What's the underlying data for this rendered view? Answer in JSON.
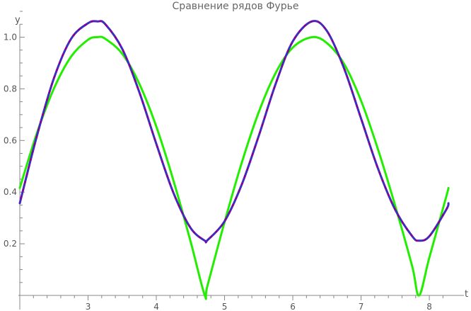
{
  "chart_data": {
    "type": "line",
    "title": "Сравнение рядов Фурье",
    "xlabel": "t",
    "ylabel": "y",
    "xlim": [
      2.0,
      8.3
    ],
    "ylim": [
      0.0,
      1.1
    ],
    "x_ticks": [
      3,
      4,
      5,
      6,
      7,
      8
    ],
    "y_ticks": [
      0.2,
      0.4,
      0.6,
      0.8,
      1.0
    ],
    "x_tick_labels": [
      "3",
      "4",
      "5",
      "6",
      "7",
      "8"
    ],
    "y_tick_labels": [
      "0.2",
      "0.4",
      "0.6",
      "0.8",
      "1.0"
    ],
    "grid": false,
    "legend": "none",
    "series": [
      {
        "color": "#8b008b",
        "style": "solid",
        "x": [
          2.0,
          2.25,
          2.5,
          2.75,
          3.0,
          3.14,
          3.25,
          3.5,
          3.75,
          4.0,
          4.25,
          4.5,
          4.71,
          4.75,
          5.0,
          5.25,
          5.5,
          5.75,
          6.0,
          6.28,
          6.5,
          6.75,
          7.0,
          7.25,
          7.5,
          7.75,
          7.85,
          8.0,
          8.25,
          8.28
        ],
        "y": [
          0.357,
          0.617,
          0.841,
          0.993,
          1.054,
          1.061,
          1.051,
          0.955,
          0.788,
          0.587,
          0.398,
          0.262,
          0.212,
          0.214,
          0.287,
          0.428,
          0.617,
          0.82,
          0.984,
          1.061,
          1.024,
          0.88,
          0.685,
          0.49,
          0.332,
          0.229,
          0.212,
          0.229,
          0.333,
          0.357
        ]
      },
      {
        "color": "#1f3ad6",
        "style": "dashed",
        "x": [
          2.0,
          2.25,
          2.5,
          2.75,
          3.0,
          3.14,
          3.25,
          3.5,
          3.75,
          4.0,
          4.25,
          4.5,
          4.71,
          4.75,
          5.0,
          5.25,
          5.5,
          5.75,
          6.0,
          6.28,
          6.5,
          6.75,
          7.0,
          7.25,
          7.5,
          7.75,
          7.85,
          8.0,
          8.25,
          8.28
        ],
        "y": [
          0.357,
          0.617,
          0.841,
          0.993,
          1.054,
          1.061,
          1.051,
          0.955,
          0.788,
          0.587,
          0.398,
          0.262,
          0.212,
          0.214,
          0.287,
          0.428,
          0.617,
          0.82,
          0.984,
          1.061,
          1.024,
          0.88,
          0.685,
          0.49,
          0.332,
          0.229,
          0.212,
          0.229,
          0.333,
          0.357
        ]
      },
      {
        "color": "#22ee00",
        "style": "solid",
        "x": [
          2.0,
          2.25,
          2.5,
          2.75,
          3.0,
          3.14,
          3.25,
          3.5,
          3.75,
          4.0,
          4.25,
          4.5,
          4.71,
          4.75,
          5.0,
          5.25,
          5.5,
          5.75,
          6.0,
          6.28,
          6.5,
          6.75,
          7.0,
          7.25,
          7.5,
          7.75,
          7.85,
          8.0,
          8.25,
          8.28
        ],
        "y": [
          0.416,
          0.628,
          0.801,
          0.924,
          0.99,
          1.0,
          0.994,
          0.936,
          0.82,
          0.654,
          0.446,
          0.211,
          0.0,
          0.038,
          0.284,
          0.512,
          0.709,
          0.862,
          0.96,
          1.0,
          0.977,
          0.897,
          0.754,
          0.564,
          0.347,
          0.112,
          0.0,
          0.146,
          0.384,
          0.416
        ]
      }
    ]
  }
}
